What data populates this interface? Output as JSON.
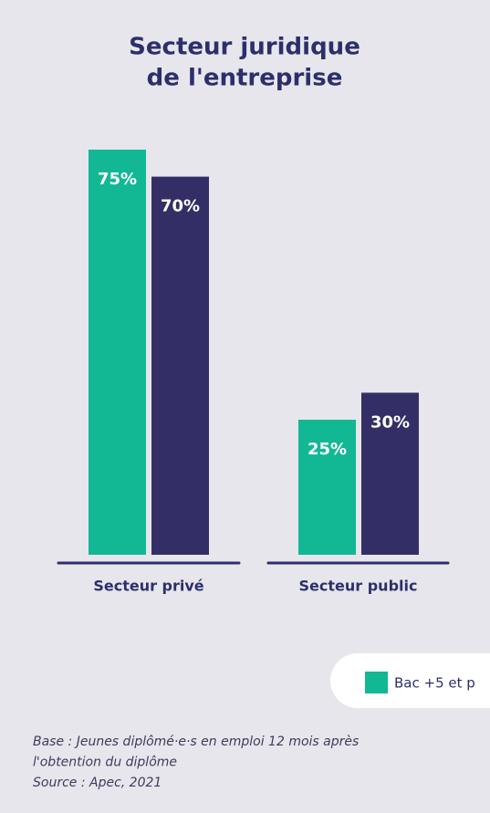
{
  "chart_data": {
    "type": "bar",
    "title": [
      "Secteur juridique",
      "de l'entreprise"
    ],
    "categories": [
      "Secteur privé",
      "Secteur public"
    ],
    "series": [
      {
        "name": "Bac +5 et p",
        "color": "#12b894",
        "values": [
          75,
          25
        ],
        "value_labels": [
          "75%",
          "25%"
        ]
      },
      {
        "color": "#332f66",
        "values": [
          70,
          30
        ],
        "value_labels": [
          "70%",
          "30%"
        ]
      }
    ],
    "note": [
      "Base : Jeunes diplômé·e·s en emploi 12 mois après",
      "l'obtention du diplôme",
      "Source : Apec, 2021"
    ]
  }
}
